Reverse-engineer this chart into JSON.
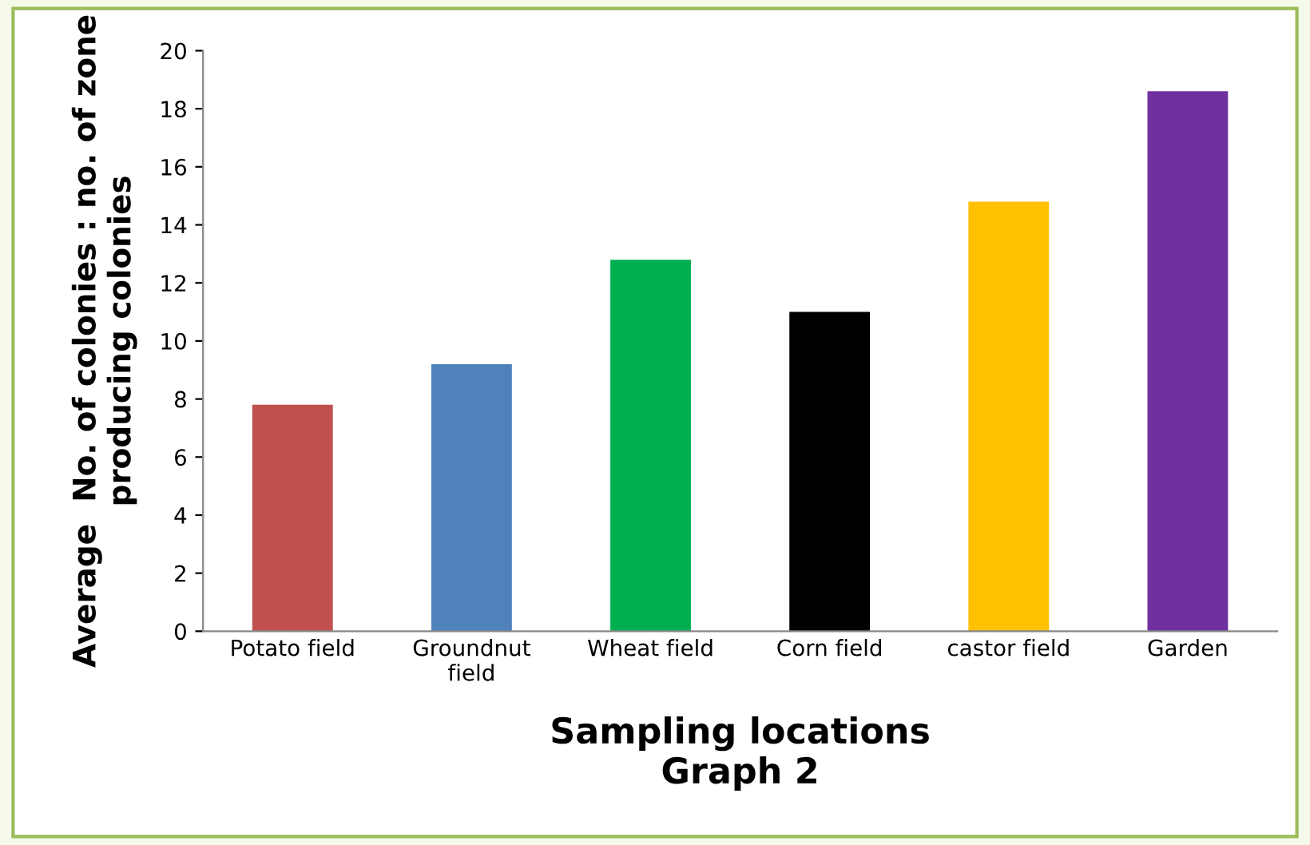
{
  "chart_data": {
    "type": "bar",
    "categories": [
      "Potato field",
      "Groundnut\nfield",
      "Wheat field",
      "Corn field",
      "castor field",
      "Garden"
    ],
    "values": [
      7.8,
      9.2,
      12.8,
      11,
      14.8,
      18.6
    ],
    "colors": [
      "#c0504d",
      "#4f81bd",
      "#00b050",
      "#000000",
      "#ffc000",
      "#7030a0"
    ],
    "xlabel": "Sampling locations\nGraph 2",
    "ylabel": "Average  No. of colonies : no. of zone\nproducing colonies",
    "ylim": [
      0,
      20
    ],
    "yticks": [
      0,
      2,
      4,
      6,
      8,
      10,
      12,
      14,
      16,
      18,
      20
    ],
    "grid": false,
    "legend": false
  }
}
